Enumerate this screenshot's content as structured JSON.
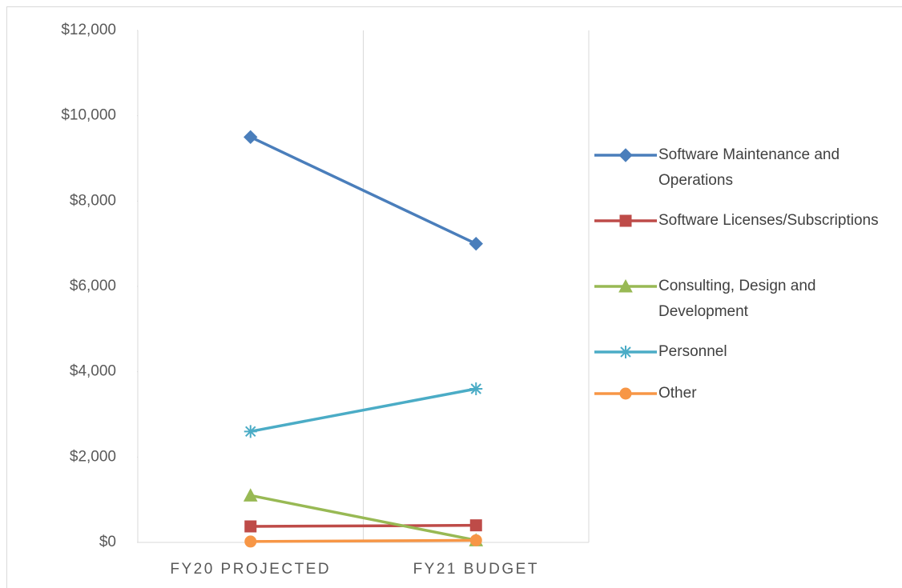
{
  "chart_data": {
    "type": "line",
    "categories": [
      "FY20 PROJECTED",
      "FY21 BUDGET"
    ],
    "series": [
      {
        "name": "Software Maintenance and Operations",
        "color": "#4a7ebb",
        "marker": "diamond",
        "values": [
          9500,
          7000
        ]
      },
      {
        "name": "Software Licenses/Subscriptions",
        "color": "#be4b48",
        "marker": "square",
        "values": [
          375,
          400
        ]
      },
      {
        "name": "Consulting, Design and Development",
        "color": "#98b954",
        "marker": "triangle",
        "values": [
          1100,
          50
        ]
      },
      {
        "name": "Personnel",
        "color": "#4bacc6",
        "marker": "asterisk",
        "values": [
          2600,
          3600
        ]
      },
      {
        "name": "Other",
        "color": "#f79646",
        "marker": "circle",
        "values": [
          20,
          50
        ]
      }
    ],
    "ylim": [
      0,
      12000
    ],
    "yticks": [
      {
        "value": 0,
        "label": "$0"
      },
      {
        "value": 2000,
        "label": "$2,000"
      },
      {
        "value": 4000,
        "label": "$4,000"
      },
      {
        "value": 6000,
        "label": "$6,000"
      },
      {
        "value": 8000,
        "label": "$8,000"
      },
      {
        "value": 10000,
        "label": "$10,000"
      },
      {
        "value": 12000,
        "label": "$12,000"
      }
    ],
    "legend": "right"
  }
}
